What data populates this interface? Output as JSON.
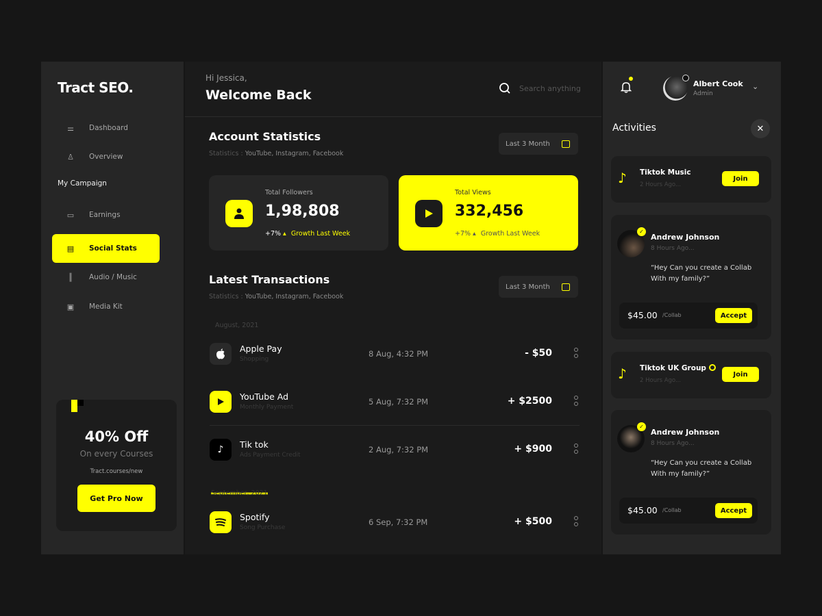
{
  "brand": "Tract SEO.",
  "colors": {
    "accent": "#ffff00",
    "background": "#161616",
    "panel": "#262626"
  },
  "sidebar": {
    "items": [
      {
        "label": "Dashboard",
        "icon": "sliders-icon"
      },
      {
        "label": "Overview",
        "icon": "user-icon"
      }
    ],
    "section": "My Campaign",
    "campaign_items": [
      {
        "label": "Earnings",
        "icon": "wallet-icon"
      },
      {
        "label": "Social Stats",
        "icon": "chat-icon",
        "active": true
      },
      {
        "label": "Audio / Music",
        "icon": "waveform-icon"
      },
      {
        "label": "Media Kit",
        "icon": "box-icon"
      }
    ],
    "promo": {
      "title": "40% Off",
      "subtitle": "On every Courses",
      "link": "Tract.courses/new",
      "button": "Get Pro Now"
    }
  },
  "header": {
    "greeting": "Hi Jessica,",
    "welcome": "Welcome Back",
    "search_placeholder": "Search anything"
  },
  "account": {
    "title": "Account Statistics",
    "sub_label": "Statistics :",
    "sub_value": "YouTube, Instagram, Facebook",
    "filter": "Last 3 Month",
    "cards": [
      {
        "title": "Total Followers",
        "value": "1,98,808",
        "growth": "+7%",
        "growth_label": "Growth Last Week"
      },
      {
        "title": "Total Views",
        "value": "332,456",
        "growth": "+7%",
        "growth_label": "Growth Last Week"
      }
    ]
  },
  "transactions": {
    "title": "Latest Transactions",
    "sub_label": "Statistics :",
    "sub_value": "YouTube, Instagram, Facebook",
    "filter": "Last 3 Month",
    "groups": [
      "August, 2021",
      "September, 2021"
    ],
    "rows": [
      {
        "name": "Apple Pay",
        "sub": "Shopping",
        "date": "8 Aug, 4:32 PM",
        "amount": "- $50",
        "icon": "apple-icon"
      },
      {
        "name": "YouTube Ad",
        "sub": "Monthly Payment",
        "date": "5 Aug, 7:32 PM",
        "amount": "+ $2500",
        "icon": "play-icon"
      },
      {
        "name": "Tik tok",
        "sub": "Ads Payment Credit",
        "date": "2 Aug, 7:32 PM",
        "amount": "+ $900",
        "icon": "tiktok-icon"
      },
      {
        "name": "Spotify",
        "sub": "Song Purchase",
        "date": "6 Sep, 7:32 PM",
        "amount": "+ $500",
        "icon": "spotify-icon"
      }
    ]
  },
  "user": {
    "name": "Albert Cook",
    "role": "Admin"
  },
  "activities": {
    "title": "Activities",
    "items": [
      {
        "title": "Tiktok Music",
        "time": "2 Hours Ago...",
        "button": "Join"
      },
      {
        "name": "Andrew Johnson",
        "time": "8 Hours Ago...",
        "message": "“Hey Can you create a Collab With my family?”",
        "price": "$45.00",
        "unit": "/Collab",
        "button": "Accept"
      },
      {
        "title": "Tiktok UK Group",
        "time": "2 Hours Ago...",
        "button": "Join"
      },
      {
        "name": "Andrew Johnson",
        "time": "8 Hours Ago...",
        "message": "“Hey Can you create a Collab With my family?”",
        "price": "$45.00",
        "unit": "/Collab",
        "button": "Accept"
      }
    ]
  }
}
